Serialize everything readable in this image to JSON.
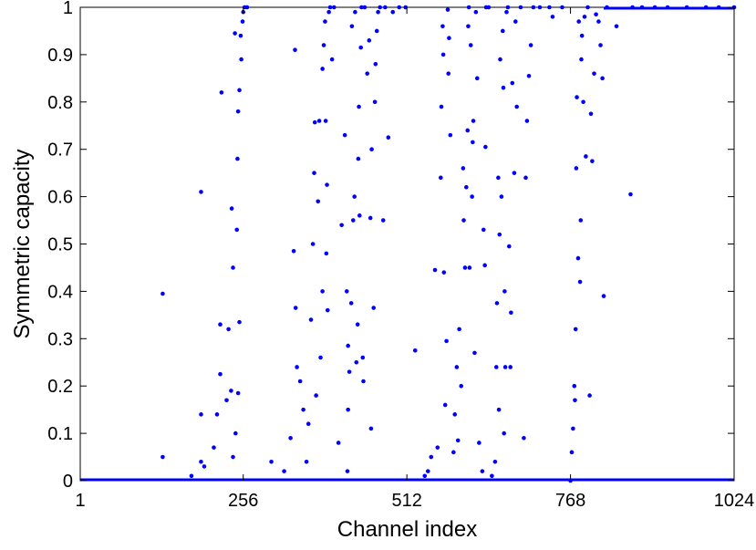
{
  "chart_data": {
    "type": "scatter",
    "title": "",
    "xlabel": "Channel index",
    "ylabel": "Symmetric capacity",
    "xlim": [
      1,
      1024
    ],
    "ylim": [
      0,
      1
    ],
    "xticks": [
      1,
      256,
      512,
      768,
      1024
    ],
    "xtick_labels": [
      "1",
      "256",
      "512",
      "768",
      "1024"
    ],
    "yticks": [
      0,
      0.1,
      0.2,
      0.3,
      0.4,
      0.5,
      0.6,
      0.7,
      0.8,
      0.9,
      1
    ],
    "ytick_labels": [
      "0",
      "0.1",
      "0.2",
      "0.3",
      "0.4",
      "0.5",
      "0.6",
      "0.7",
      "0.8",
      "0.9",
      "1"
    ],
    "grid": false,
    "marker_color": "#0000ff",
    "series": [
      {
        "points": [
          [
            130,
            0.05
          ],
          [
            130,
            0.395
          ],
          [
            175,
            0.01
          ],
          [
            195,
            0.03
          ],
          [
            190,
            0.04
          ],
          [
            190,
            0.61
          ],
          [
            190,
            0.14
          ],
          [
            210,
            0.07
          ],
          [
            215,
            0.14
          ],
          [
            220,
            0.33
          ],
          [
            222,
            0.82
          ],
          [
            220,
            0.225
          ],
          [
            230,
            0.17
          ],
          [
            233,
            0.32
          ],
          [
            237,
            0.19
          ],
          [
            240,
            0.45
          ],
          [
            238,
            0.575
          ],
          [
            240,
            0.05
          ],
          [
            243,
            0.945
          ],
          [
            244,
            0.1
          ],
          [
            246,
            0.53
          ],
          [
            247,
            0.68
          ],
          [
            248,
            0.185
          ],
          [
            248,
            0.78
          ],
          [
            250,
            0.335
          ],
          [
            250,
            0.825
          ],
          [
            252,
            0.94
          ],
          [
            253,
            0.89
          ],
          [
            255,
            0.97
          ],
          [
            256,
            0.99
          ],
          [
            258,
            1.0
          ],
          [
            262,
            1.0
          ],
          [
            300,
            0.04
          ],
          [
            320,
            0.02
          ],
          [
            330,
            0.09
          ],
          [
            335,
            0.485
          ],
          [
            337,
            0.91
          ],
          [
            338,
            0.365
          ],
          [
            340,
            0.24
          ],
          [
            345,
            0.21
          ],
          [
            350,
            0.15
          ],
          [
            355,
            0.04
          ],
          [
            358,
            0.12
          ],
          [
            362,
            0.34
          ],
          [
            365,
            0.5
          ],
          [
            367,
            0.65
          ],
          [
            368,
            0.757
          ],
          [
            370,
            0.18
          ],
          [
            373,
            0.59
          ],
          [
            375,
            0.76
          ],
          [
            377,
            0.26
          ],
          [
            380,
            0.4
          ],
          [
            380,
            0.87
          ],
          [
            382,
            0.92
          ],
          [
            384,
            0.97
          ],
          [
            385,
            0.76
          ],
          [
            386,
            0.48
          ],
          [
            387,
            0.625
          ],
          [
            388,
            0.36
          ],
          [
            390,
            0.99
          ],
          [
            392,
            1.0
          ],
          [
            395,
            0.89
          ],
          [
            398,
            1.0
          ],
          [
            405,
            0.08
          ],
          [
            410,
            0.54
          ],
          [
            415,
            0.73
          ],
          [
            418,
            0.4
          ],
          [
            419,
            0.02
          ],
          [
            420,
            0.285
          ],
          [
            420,
            0.15
          ],
          [
            422,
            0.23
          ],
          [
            425,
            0.375
          ],
          [
            426,
            0.96
          ],
          [
            428,
            0.55
          ],
          [
            430,
            0.6
          ],
          [
            431,
            0.99
          ],
          [
            433,
            0.25
          ],
          [
            435,
            0.33
          ],
          [
            436,
            0.68
          ],
          [
            437,
            0.79
          ],
          [
            438,
            0.56
          ],
          [
            440,
            0.915
          ],
          [
            441,
            1.0
          ],
          [
            443,
            0.26
          ],
          [
            444,
            0.21
          ],
          [
            446,
            1.0
          ],
          [
            450,
            0.86
          ],
          [
            453,
            0.93
          ],
          [
            455,
            0.555
          ],
          [
            456,
            0.11
          ],
          [
            457,
            0.7
          ],
          [
            460,
            0.365
          ],
          [
            462,
            0.8
          ],
          [
            463,
            0.88
          ],
          [
            465,
            0.95
          ],
          [
            467,
            0.99
          ],
          [
            470,
            1.0
          ],
          [
            475,
            0.55
          ],
          [
            478,
            1.0
          ],
          [
            483,
            0.725
          ],
          [
            490,
            0.99
          ],
          [
            500,
            1.0
          ],
          [
            510,
            1.0
          ],
          [
            525,
            0.275
          ],
          [
            540,
            0.01
          ],
          [
            545,
            0.02
          ],
          [
            550,
            0.05
          ],
          [
            556,
            0.445
          ],
          [
            560,
            0.07
          ],
          [
            565,
            0.64
          ],
          [
            566,
            0.79
          ],
          [
            568,
            0.96
          ],
          [
            569,
            0.9
          ],
          [
            570,
            0.44
          ],
          [
            572,
            0.16
          ],
          [
            574,
            0.295
          ],
          [
            576,
            0.995
          ],
          [
            577,
            0.86
          ],
          [
            578,
            0.935
          ],
          [
            580,
            0.73
          ],
          [
            585,
            0.06
          ],
          [
            587,
            0.14
          ],
          [
            590,
            0.24
          ],
          [
            592,
            0.085
          ],
          [
            594,
            0.32
          ],
          [
            597,
            0.2
          ],
          [
            600,
            0.66
          ],
          [
            601,
            0.55
          ],
          [
            603,
            0.45
          ],
          [
            605,
            0.62
          ],
          [
            607,
            0.74
          ],
          [
            608,
            0.96
          ],
          [
            609,
            1.0
          ],
          [
            610,
            0.45
          ],
          [
            612,
            0.92
          ],
          [
            614,
            0.6
          ],
          [
            615,
            0.715
          ],
          [
            616,
            0.76
          ],
          [
            618,
            0.27
          ],
          [
            620,
            0.99
          ],
          [
            622,
            0.85
          ],
          [
            625,
            0.08
          ],
          [
            630,
            0.02
          ],
          [
            632,
            0.53
          ],
          [
            634,
            0.455
          ],
          [
            635,
            0.705
          ],
          [
            636,
            1.0
          ],
          [
            640,
            1.0
          ],
          [
            645,
            0.01
          ],
          [
            650,
            0.04
          ],
          [
            652,
            0.24
          ],
          [
            653,
            0.375
          ],
          [
            655,
            0.64
          ],
          [
            656,
            0.15
          ],
          [
            657,
            0.52
          ],
          [
            658,
            0.89
          ],
          [
            660,
            0.6
          ],
          [
            662,
            0.95
          ],
          [
            663,
            0.83
          ],
          [
            664,
            0.1
          ],
          [
            665,
            0.4
          ],
          [
            666,
            0.24
          ],
          [
            668,
            0.99
          ],
          [
            670,
            1.0
          ],
          [
            672,
            0.495
          ],
          [
            674,
            0.24
          ],
          [
            675,
            0.355
          ],
          [
            677,
            0.84
          ],
          [
            680,
            0.65
          ],
          [
            682,
            0.97
          ],
          [
            684,
            0.79
          ],
          [
            690,
            1.0
          ],
          [
            695,
            0.09
          ],
          [
            698,
            0.64
          ],
          [
            700,
            0.76
          ],
          [
            703,
            0.855
          ],
          [
            706,
            0.92
          ],
          [
            710,
            1.0
          ],
          [
            720,
            1.0
          ],
          [
            735,
            1.0
          ],
          [
            740,
            0.98
          ],
          [
            755,
            1.0
          ],
          [
            768,
            0.0
          ],
          [
            770,
            0.06
          ],
          [
            772,
            0.11
          ],
          [
            774,
            0.2
          ],
          [
            775,
            0.17
          ],
          [
            776,
            0.32
          ],
          [
            777,
            0.66
          ],
          [
            778,
            0.81
          ],
          [
            780,
            0.47
          ],
          [
            781,
            0.97
          ],
          [
            783,
            0.42
          ],
          [
            784,
            0.55
          ],
          [
            785,
            0.89
          ],
          [
            786,
            0.94
          ],
          [
            788,
            0.8
          ],
          [
            790,
            0.98
          ],
          [
            792,
            0.685
          ],
          [
            795,
            1.0
          ],
          [
            798,
            0.18
          ],
          [
            800,
            0.775
          ],
          [
            802,
            0.675
          ],
          [
            805,
            0.86
          ],
          [
            808,
            0.985
          ],
          [
            812,
            0.97
          ],
          [
            815,
            0.92
          ],
          [
            818,
            0.85
          ],
          [
            820,
            0.39
          ],
          [
            825,
            1.0
          ],
          [
            840,
            0.96
          ],
          [
            862,
            0.605
          ],
          [
            865,
            1.0
          ],
          [
            880,
            1.0
          ],
          [
            900,
            1.0
          ],
          [
            920,
            1.0
          ],
          [
            950,
            1.0
          ],
          [
            980,
            1.0
          ],
          [
            1000,
            1.0
          ],
          [
            1024,
            1.0
          ]
        ]
      }
    ]
  }
}
